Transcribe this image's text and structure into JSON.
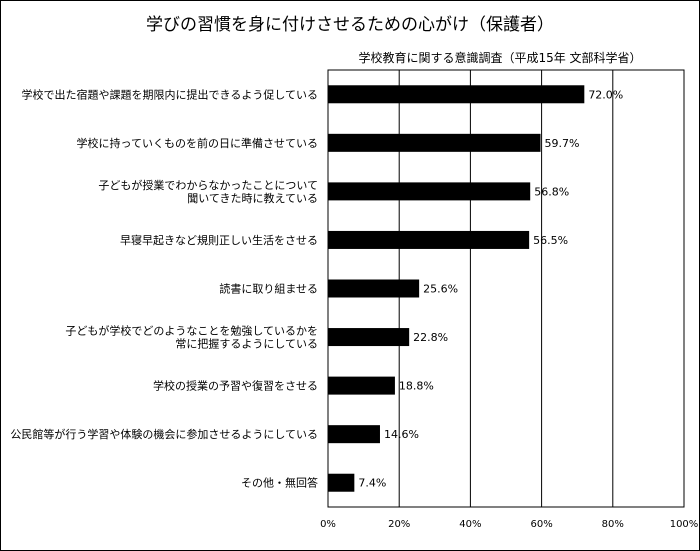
{
  "chart_data": {
    "type": "bar",
    "orientation": "horizontal",
    "title": "学びの習慣を身に付けさせるための心がけ（保護者）",
    "subtitle": "学校教育に関する意識調査（平成15年 文部科学省）",
    "categories": [
      [
        "学校で出た宿題や課題を期限内に提出できるよう促している"
      ],
      [
        "学校に持っていくものを前の日に準備させている"
      ],
      [
        "子どもが授業でわからなかったことについて",
        "聞いてきた時に教えている"
      ],
      [
        "早寝早起きなど規則正しい生活をさせる"
      ],
      [
        "読書に取り組ませる"
      ],
      [
        "子どもが学校でどのようなことを勉強しているかを",
        "常に把握するようにしている"
      ],
      [
        "学校の授業の予習や復習をさせる"
      ],
      [
        "公民館等が行う学習や体験の機会に参加させるようにしている"
      ],
      [
        "その他・無回答"
      ]
    ],
    "values": [
      72.0,
      59.7,
      56.8,
      56.5,
      25.6,
      22.8,
      18.8,
      14.6,
      7.4
    ],
    "value_labels": [
      "72.0%",
      "59.7%",
      "56.8%",
      "56.5%",
      "25.6%",
      "22.8%",
      "18.8%",
      "14.6%",
      "7.4%"
    ],
    "xlim": [
      0,
      100
    ],
    "xticks": [
      "0%",
      "20%",
      "40%",
      "60%",
      "80%",
      "100%"
    ],
    "grid": true,
    "colors": {
      "bar": "#000000",
      "grid": "#000000",
      "background": "#ffffff"
    }
  }
}
